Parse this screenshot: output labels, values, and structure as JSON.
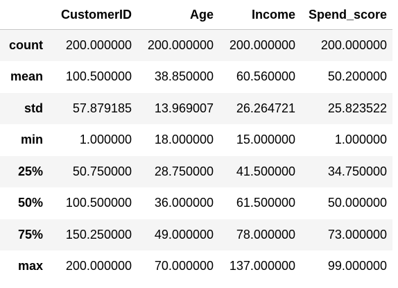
{
  "table": {
    "columns": [
      "CustomerID",
      "Age",
      "Income",
      "Spend_score"
    ],
    "rows": [
      {
        "label": "count",
        "values": [
          "200.000000",
          "200.000000",
          "200.000000",
          "200.000000"
        ]
      },
      {
        "label": "mean",
        "values": [
          "100.500000",
          "38.850000",
          "60.560000",
          "50.200000"
        ]
      },
      {
        "label": "std",
        "values": [
          "57.879185",
          "13.969007",
          "26.264721",
          "25.823522"
        ]
      },
      {
        "label": "min",
        "values": [
          "1.000000",
          "18.000000",
          "15.000000",
          "1.000000"
        ]
      },
      {
        "label": "25%",
        "values": [
          "50.750000",
          "28.750000",
          "41.500000",
          "34.750000"
        ]
      },
      {
        "label": "50%",
        "values": [
          "100.500000",
          "36.000000",
          "61.500000",
          "50.000000"
        ]
      },
      {
        "label": "75%",
        "values": [
          "150.250000",
          "49.000000",
          "78.000000",
          "73.000000"
        ]
      },
      {
        "label": "max",
        "values": [
          "200.000000",
          "70.000000",
          "137.000000",
          "99.000000"
        ]
      }
    ]
  }
}
